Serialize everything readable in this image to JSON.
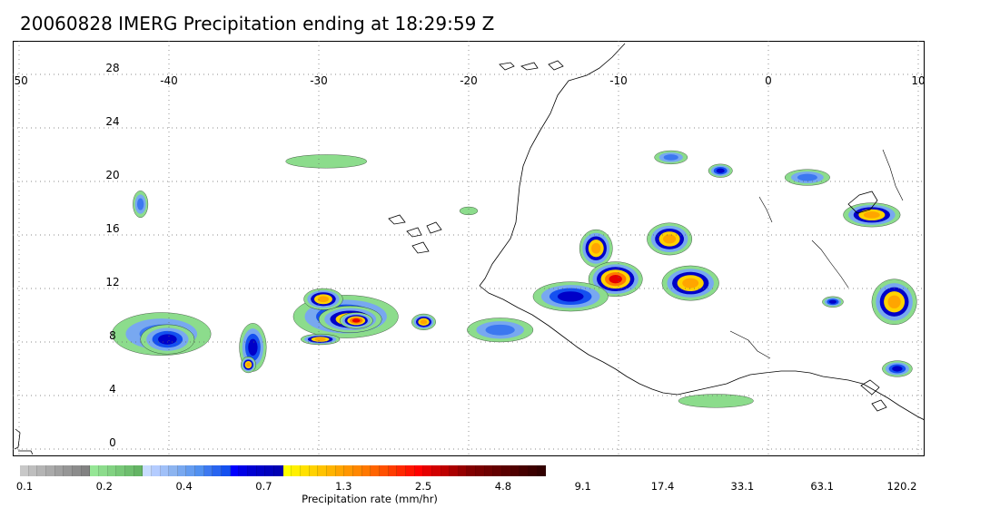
{
  "title": "20060828 IMERG Precipitation ending at 18:29:59 Z",
  "map": {
    "lon_labels": [
      "-50",
      "-40",
      "-30",
      "-20",
      "-10",
      "0",
      "10"
    ],
    "lon_values": [
      -50,
      -40,
      -30,
      -20,
      -10,
      0,
      10
    ],
    "lat_labels": [
      "28",
      "24",
      "20",
      "16",
      "12",
      "8",
      "4",
      "0"
    ],
    "lat_values": [
      28,
      24,
      20,
      16,
      12,
      8,
      4,
      0
    ],
    "lon_range": [
      -50,
      10
    ],
    "lat_range": [
      -0.5,
      29
    ],
    "grid": "dotted"
  },
  "colorbar": {
    "title": "Precipitation rate (mm/hr)",
    "labels": [
      "0.1",
      "0.2",
      "0.4",
      "0.7",
      "1.3",
      "2.5",
      "4.8",
      "9.1",
      "17.4",
      "33.1",
      "63.1",
      "120.2"
    ],
    "colors": [
      "#c8c8c8",
      "#bebebe",
      "#b4b4b4",
      "#aaaaaa",
      "#a0a0a0",
      "#969696",
      "#8c8c8c",
      "#828282",
      "#96e696",
      "#8cdc8c",
      "#82d282",
      "#78c878",
      "#6ebe6e",
      "#64b464",
      "#c8dcff",
      "#b4ccff",
      "#a0c0f8",
      "#8cb4f0",
      "#78a8f0",
      "#649cf0",
      "#5090f0",
      "#3c78f0",
      "#2864f0",
      "#1450f0",
      "#0000ff",
      "#0000e6",
      "#0000d2",
      "#0000c8",
      "#0000be",
      "#0000b4",
      "#ffff00",
      "#fff000",
      "#ffe100",
      "#ffd200",
      "#ffc300",
      "#ffb400",
      "#ffa500",
      "#ff9600",
      "#ff8700",
      "#ff7800",
      "#ff6400",
      "#ff5000",
      "#ff3c00",
      "#ff2800",
      "#ff1400",
      "#ff0000",
      "#e60000",
      "#d20000",
      "#be0000",
      "#aa0000",
      "#960000",
      "#820000",
      "#780000",
      "#6e0000",
      "#640000",
      "#5a0000",
      "#500000",
      "#460000",
      "#3c0000",
      "#320000"
    ]
  },
  "precip_cells": [
    {
      "lon": -40.5,
      "lat": 8.6,
      "rx": 3.3,
      "ry": 1.6,
      "level": "blue"
    },
    {
      "lon": -40.1,
      "lat": 8.2,
      "rx": 1.8,
      "ry": 1.1,
      "level": "dark-blue"
    },
    {
      "lon": -34.4,
      "lat": 7.6,
      "rx": 0.9,
      "ry": 1.8,
      "level": "dark-blue"
    },
    {
      "lon": -34.7,
      "lat": 6.3,
      "rx": 0.5,
      "ry": 0.6,
      "level": "orange"
    },
    {
      "lon": -28.2,
      "lat": 9.9,
      "rx": 3.5,
      "ry": 1.6,
      "level": "dark-blue"
    },
    {
      "lon": -27.9,
      "lat": 9.7,
      "rx": 2.1,
      "ry": 1.0,
      "level": "orange"
    },
    {
      "lon": -27.5,
      "lat": 9.6,
      "rx": 1.1,
      "ry": 0.6,
      "level": "red"
    },
    {
      "lon": -29.7,
      "lat": 11.2,
      "rx": 1.3,
      "ry": 0.8,
      "level": "orange"
    },
    {
      "lon": -29.9,
      "lat": 8.2,
      "rx": 1.3,
      "ry": 0.4,
      "level": "orange"
    },
    {
      "lon": -23.0,
      "lat": 9.5,
      "rx": 0.8,
      "ry": 0.6,
      "level": "orange"
    },
    {
      "lon": -17.9,
      "lat": 8.9,
      "rx": 2.2,
      "ry": 0.9,
      "level": "blue"
    },
    {
      "lon": -11.5,
      "lat": 15.0,
      "rx": 1.1,
      "ry": 1.4,
      "level": "orange"
    },
    {
      "lon": -10.2,
      "lat": 12.7,
      "rx": 1.8,
      "ry": 1.3,
      "level": "red"
    },
    {
      "lon": -13.2,
      "lat": 11.4,
      "rx": 2.5,
      "ry": 1.1,
      "level": "dark-blue"
    },
    {
      "lon": -6.6,
      "lat": 15.7,
      "rx": 1.5,
      "ry": 1.2,
      "level": "orange"
    },
    {
      "lon": -5.2,
      "lat": 12.4,
      "rx": 1.9,
      "ry": 1.3,
      "level": "orange"
    },
    {
      "lon": -3.2,
      "lat": 20.8,
      "rx": 0.8,
      "ry": 0.5,
      "level": "dark-blue"
    },
    {
      "lon": 6.9,
      "lat": 17.5,
      "rx": 1.9,
      "ry": 0.9,
      "level": "orange"
    },
    {
      "lon": 8.4,
      "lat": 11.0,
      "rx": 1.5,
      "ry": 1.7,
      "level": "orange"
    },
    {
      "lon": 8.6,
      "lat": 6.0,
      "rx": 1.0,
      "ry": 0.6,
      "level": "dark-blue"
    },
    {
      "lon": 4.3,
      "lat": 11.0,
      "rx": 0.7,
      "ry": 0.4,
      "level": "dark-blue"
    },
    {
      "lon": -20.0,
      "lat": 17.8,
      "rx": 0.6,
      "ry": 0.3,
      "level": "green"
    },
    {
      "lon": -29.5,
      "lat": 21.5,
      "rx": 2.7,
      "ry": 0.5,
      "level": "green"
    },
    {
      "lon": -41.9,
      "lat": 18.3,
      "rx": 0.5,
      "ry": 1.0,
      "level": "blue"
    },
    {
      "lon": 2.6,
      "lat": 20.3,
      "rx": 1.5,
      "ry": 0.6,
      "level": "blue"
    },
    {
      "lon": -6.5,
      "lat": 21.8,
      "rx": 1.1,
      "ry": 0.5,
      "level": "blue"
    },
    {
      "lon": -3.5,
      "lat": 3.6,
      "rx": 2.5,
      "ry": 0.5,
      "level": "green"
    }
  ]
}
